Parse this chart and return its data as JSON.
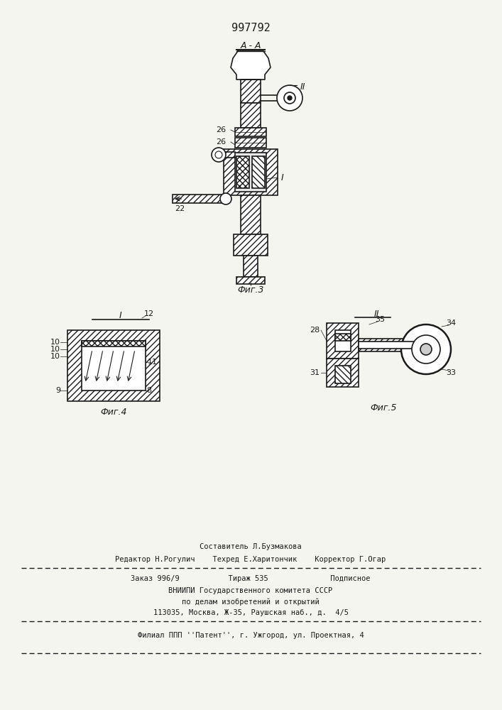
{
  "patent_number": "997792",
  "section_label_top": "А - А",
  "fig3_label": "Фиг.3",
  "fig4_label": "Фиг.4",
  "fig5_label": "Фиг.5",
  "label_I_fig3": "I",
  "label_II_fig3": "II",
  "label_22": "22",
  "label_26a": "26",
  "label_26b": "26",
  "label_I_fig4": "I",
  "label_II_fig5": "II",
  "labels_fig4": [
    "10",
    "10",
    "10",
    "9",
    "8",
    "11",
    "12"
  ],
  "labels_fig5": [
    "28",
    "31",
    "35",
    "34",
    "33"
  ],
  "footer_line1": "Составитель Л.Бузмакова",
  "footer_line2": "Редактор Н.Рогулич    Техред Е.Харитончик    Корректор Г.Огар",
  "footer_line3": "Заказ 996/9           Тираж 535              Подписное",
  "footer_line4": "ВНИИПИ Государственного комитета СССР",
  "footer_line5": "по делам изобретений и открытий",
  "footer_line6": "113035, Москва, Ж-35, Раушская наб., д.  4/5",
  "footer_line7": "Филиал ППП ''Патент'', г. Ужгород, ул. Проектная, 4",
  "bg_color": "#f5f5f0",
  "line_color": "#1a1a1a",
  "hatch_color": "#333333",
  "fig_width": 7.07,
  "fig_height": 10.0
}
